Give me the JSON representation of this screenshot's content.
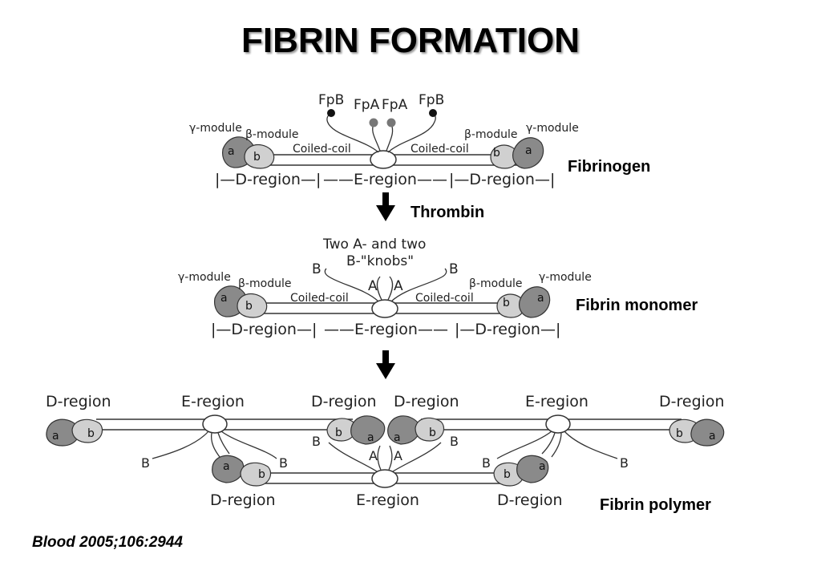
{
  "title": "FIBRIN FORMATION",
  "citation": "Blood 2005;106:2944",
  "labels": {
    "fibrinogen": "Fibrinogen",
    "thrombin": "Thrombin",
    "monomer": "Fibrin monomer",
    "polymer": "Fibrin polymer"
  },
  "fibrinogen": {
    "fpb_left": "FpB",
    "fpa_left": "FpA",
    "fpa_right": "FpA",
    "fpb_right": "FpB",
    "gamma_left": "γ-module",
    "beta_left": "β-module",
    "beta_right": "β-module",
    "gamma_right": "γ-module",
    "coil_left": "Coiled-coil",
    "coil_right": "Coiled-coil",
    "d_left": "|—D-region—|",
    "e_region": "——E-region——",
    "d_right": "|—D-region—|",
    "glob_a": "a",
    "glob_b": "b"
  },
  "monomer": {
    "knobs_line1": "Two A- and two",
    "knobs_line2": "B-\"knobs\"",
    "knob_b": "B",
    "knob_a": "A",
    "gamma_left": "γ-module",
    "beta_left": "β-module",
    "beta_right": "β-module",
    "gamma_right": "γ-module",
    "coil_left": "Coiled-coil",
    "coil_right": "Coiled-coil",
    "d_left": "|—D-region—|",
    "e_region": "——E-region——",
    "d_right": "|—D-region—|",
    "glob_a": "a",
    "glob_b": "b"
  },
  "polymer": {
    "d_region": "D-region",
    "e_region": "E-region",
    "knob_b": "B",
    "knob_a": "A",
    "glob_a": "a",
    "glob_b": "b"
  }
}
